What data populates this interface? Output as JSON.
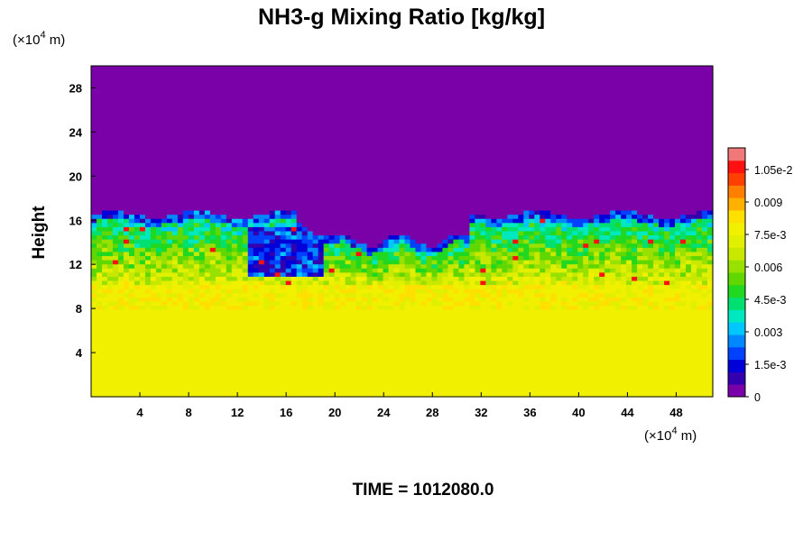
{
  "chart_data": {
    "type": "heatmap",
    "title": "NH3-g Mixing Ratio [kg/kg]",
    "xlabel": "",
    "ylabel": "Height",
    "x_unit_prefix": "(×10",
    "x_unit_exp": "4",
    "x_unit_suffix": " m)",
    "y_unit_prefix": "(×10",
    "y_unit_exp": "4",
    "y_unit_suffix": " m)",
    "xlim": [
      0,
      51
    ],
    "ylim": [
      0,
      30
    ],
    "x_ticks": [
      4,
      8,
      12,
      16,
      20,
      24,
      28,
      32,
      36,
      40,
      44,
      48
    ],
    "y_ticks": [
      4,
      8,
      12,
      16,
      20,
      24,
      28
    ],
    "colorbar": {
      "min": 0,
      "max": 0.0115,
      "tick_values": [
        0,
        0.0015,
        0.003,
        0.0045,
        0.006,
        0.0075,
        0.009,
        0.0105
      ],
      "tick_labels": [
        "0",
        "1.5e-3",
        "0.003",
        "4.5e-3",
        "0.006",
        "7.5e-3",
        "0.009",
        "1.05e-2"
      ],
      "colors": [
        "#7a00a8",
        "#3300b0",
        "#0000d8",
        "#0040ff",
        "#0088ff",
        "#00c8ff",
        "#00e8c0",
        "#00e070",
        "#20d820",
        "#60d800",
        "#98e000",
        "#c8e800",
        "#e0f000",
        "#f0f000",
        "#ffe000",
        "#ffb000",
        "#ff8000",
        "#ff4000",
        "#ff1010",
        "#f07878"
      ]
    },
    "field_description_values": {
      "upper_layer_value": 0,
      "lower_layer_value": 0.0078,
      "cloud_top_height_approx": 16.5,
      "transition_layer": [
        10,
        17
      ]
    }
  },
  "footer": {
    "time_label": "TIME = 1012080.0"
  }
}
